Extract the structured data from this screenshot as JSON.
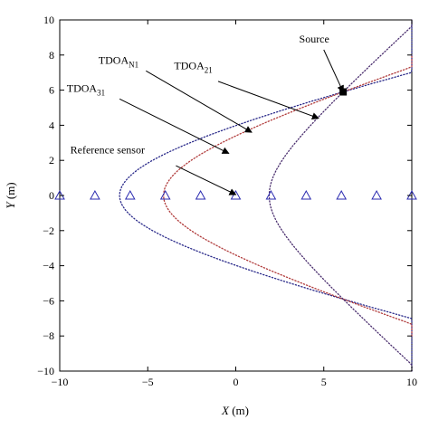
{
  "chart_data": {
    "type": "line",
    "xlabel_var": "X",
    "xlabel_unit": " (m)",
    "ylabel_var": "Y",
    "ylabel_unit": " (m)",
    "xlim": [
      -10,
      10
    ],
    "ylim": [
      -10,
      10
    ],
    "x_ticks": [
      -10,
      -5,
      0,
      5,
      10
    ],
    "y_ticks": [
      -10,
      -8,
      -6,
      -4,
      -2,
      0,
      2,
      4,
      6,
      8,
      10
    ],
    "x_tick_labels": [
      "−10",
      "−5",
      "0",
      "5",
      "10"
    ],
    "y_tick_labels": [
      "−10",
      "−8",
      "−6",
      "−4",
      "−2",
      "0",
      "2",
      "4",
      "6",
      "8",
      "10"
    ],
    "grid": false,
    "legend": "none",
    "sensors": {
      "x": [
        -10,
        -8,
        -6,
        -4,
        -2,
        0,
        2,
        4,
        6,
        8,
        10
      ],
      "y": [
        0,
        0,
        0,
        0,
        0,
        0,
        0,
        0,
        0,
        0,
        0
      ],
      "marker": "triangle",
      "color": "#2b2bb0"
    },
    "source": {
      "x": 6.1,
      "y": 5.9,
      "marker": "square",
      "color": "#000000"
    },
    "series": [
      {
        "color": "#2a2a8a",
        "vertex_x": -6.6,
        "b": 4.3,
        "y_range": [
          -10,
          10
        ]
      },
      {
        "color": "#b03a3a",
        "vertex_x": -4.1,
        "b": 3.8,
        "y_range": [
          -8,
          8
        ]
      },
      {
        "color": "#4a2e6e",
        "vertex_x": 1.9,
        "b": 2.7,
        "y_range": [
          -10,
          10
        ]
      }
    ],
    "annotations": [
      {
        "text": "Source",
        "sub": "",
        "text_x": 3.6,
        "text_y": 8.7,
        "arrow_from": [
          5.0,
          8.3
        ],
        "arrow_to": [
          6.1,
          5.9
        ]
      },
      {
        "text": "TDOA",
        "sub": "N1",
        "text_x": -7.8,
        "text_y": 7.5,
        "arrow_from": [
          -5.1,
          7.1
        ],
        "arrow_to": [
          0.9,
          3.6
        ]
      },
      {
        "text": "TDOA",
        "sub": "21",
        "text_x": -3.5,
        "text_y": 7.2,
        "arrow_from": [
          -1.0,
          6.5
        ],
        "arrow_to": [
          4.7,
          4.4
        ]
      },
      {
        "text": "TDOA",
        "sub": "31",
        "text_x": -9.6,
        "text_y": 5.9,
        "arrow_from": [
          -6.6,
          5.5
        ],
        "arrow_to": [
          -0.4,
          2.4
        ]
      },
      {
        "text": "Reference sensor",
        "sub": "",
        "text_x": -9.4,
        "text_y": 2.4,
        "arrow_from": [
          -3.4,
          1.7
        ],
        "arrow_to": [
          0.0,
          0.05
        ]
      }
    ]
  }
}
